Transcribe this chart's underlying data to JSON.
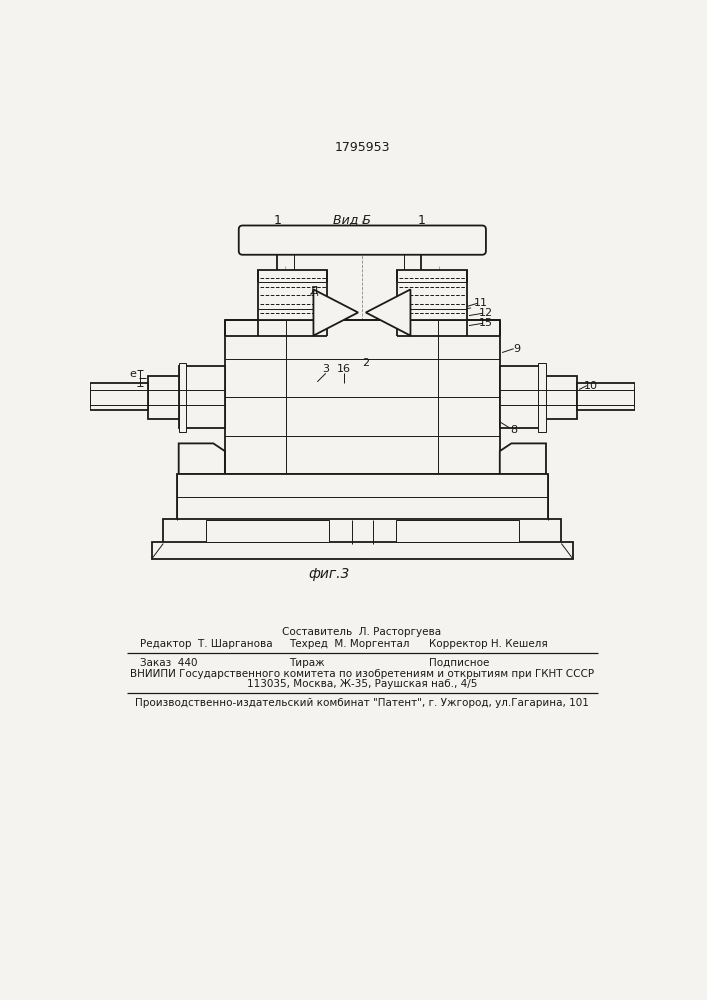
{
  "patent_number": "1795953",
  "view_label": "Вид Б",
  "fig_label": "фиг.3",
  "bg_color": "#f5f3f0",
  "line_color": "#1a1a1a",
  "footer": {
    "line1_center": "Составитель  Л. Расторгуева",
    "line2_left": "Редактор  Т. Шарганова",
    "line2_center": "Техред  М. Моргентал",
    "line2_right": "Корректор Н. Кешеля",
    "line3_left": "Заказ  440",
    "line3_center": "Тираж",
    "line3_right": "Подписное",
    "line4": "ВНИИПИ Государственного комитета по изобретениям и открытиям при ГКНТ СССР",
    "line5": "113035, Москва, Ж-35, Раушская наб., 4/5",
    "line6": "Производственно-издательский комбинат \"Патент\", г. Ужгород, ул.Гагарина, 101"
  }
}
